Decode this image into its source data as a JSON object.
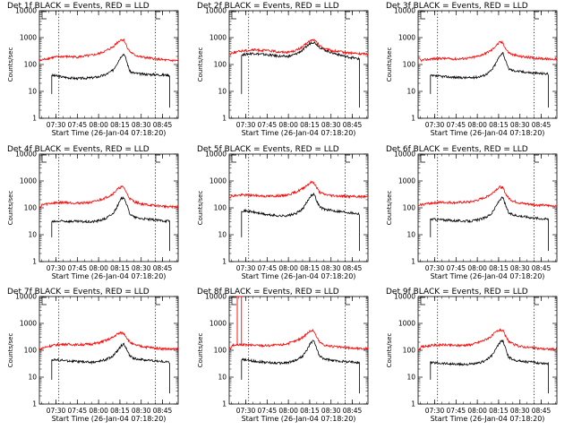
{
  "chart_data": [
    {
      "type": "line",
      "title": "Det 1f BLACK = Events, RED = LLD",
      "xlabel": "Start Time (26-Jan-04 07:18:20)",
      "ylabel": "Counts/sec",
      "ylim": [
        1,
        10000
      ],
      "yscale": "log",
      "xlim": [
        "07:18:20",
        "08:56:00"
      ],
      "xticks": [
        "07:30",
        "07:45",
        "08:00",
        "08:15",
        "08:30",
        "08:45"
      ],
      "yticks": [
        "1",
        "10",
        "100",
        "1000",
        "10000"
      ],
      "vlines": [
        "07:32",
        "08:40"
      ],
      "line_colors": {
        "events": "#000000",
        "lld": "#ff0000"
      },
      "events_range": [
        "07:27",
        "08:50"
      ],
      "x": [
        "07:20",
        "07:27",
        "07:35",
        "07:45",
        "07:55",
        "08:00",
        "08:05",
        "08:10",
        "08:13",
        "08:16",
        "08:18",
        "08:20",
        "08:22",
        "08:25",
        "08:30",
        "08:40",
        "08:50",
        "08:56"
      ],
      "series": [
        {
          "name": "BLACK",
          "values": [
            null,
            40,
            34,
            30,
            32,
            35,
            42,
            60,
            110,
            210,
            250,
            120,
            55,
            48,
            44,
            42,
            40,
            null
          ]
        },
        {
          "name": "RED",
          "values": [
            150,
            180,
            200,
            190,
            220,
            250,
            320,
            450,
            650,
            850,
            800,
            450,
            300,
            230,
            190,
            160,
            140,
            140
          ]
        }
      ]
    },
    {
      "type": "line",
      "title": "Det 2f BLACK = Events, RED = LLD",
      "xlabel": "Start Time (26-Jan-04 07:18:20)",
      "ylabel": "Counts/sec",
      "ylim": [
        1,
        10000
      ],
      "yscale": "log",
      "xlim": [
        "07:18:20",
        "08:56:00"
      ],
      "xticks": [
        "07:30",
        "07:45",
        "08:00",
        "08:15",
        "08:30",
        "08:45"
      ],
      "yticks": [
        "1",
        "10",
        "100",
        "1000",
        "10000"
      ],
      "vlines": [
        "07:32",
        "08:40"
      ],
      "line_colors": {
        "events": "#000000",
        "lld": "#ff0000"
      },
      "events_range": [
        "07:27",
        "08:50"
      ],
      "x": [
        "07:20",
        "07:27",
        "07:35",
        "07:45",
        "07:55",
        "08:00",
        "08:05",
        "08:10",
        "08:13",
        "08:16",
        "08:18",
        "08:20",
        "08:22",
        "08:25",
        "08:30",
        "08:40",
        "08:50",
        "08:56"
      ],
      "series": [
        {
          "name": "BLACK",
          "values": [
            null,
            230,
            260,
            230,
            200,
            200,
            240,
            340,
            480,
            650,
            680,
            560,
            440,
            360,
            280,
            200,
            160,
            null
          ]
        },
        {
          "name": "RED",
          "values": [
            270,
            320,
            350,
            330,
            290,
            290,
            330,
            450,
            620,
            800,
            820,
            650,
            500,
            400,
            330,
            280,
            250,
            250
          ]
        }
      ]
    },
    {
      "type": "line",
      "title": "Det 3f BLACK = Events, RED = LLD",
      "xlabel": "Start Time (26-Jan-04 07:18:20)",
      "ylabel": "Counts/sec",
      "ylim": [
        1,
        10000
      ],
      "yscale": "log",
      "xlim": [
        "07:18:20",
        "08:56:00"
      ],
      "xticks": [
        "07:30",
        "07:45",
        "08:00",
        "08:15",
        "08:30",
        "08:45"
      ],
      "yticks": [
        "1",
        "10",
        "100",
        "1000",
        "10000"
      ],
      "vlines": [
        "07:32",
        "08:40"
      ],
      "line_colors": {
        "events": "#000000",
        "lld": "#ff0000"
      },
      "events_range": [
        "07:27",
        "08:50"
      ],
      "x": [
        "07:20",
        "07:27",
        "07:35",
        "07:45",
        "07:55",
        "08:00",
        "08:05",
        "08:10",
        "08:13",
        "08:16",
        "08:18",
        "08:20",
        "08:22",
        "08:25",
        "08:30",
        "08:40",
        "08:50",
        "08:56"
      ],
      "series": [
        {
          "name": "BLACK",
          "values": [
            null,
            38,
            36,
            33,
            32,
            34,
            40,
            60,
            110,
            220,
            280,
            130,
            70,
            60,
            55,
            48,
            45,
            null
          ]
        },
        {
          "name": "RED",
          "values": [
            140,
            160,
            170,
            160,
            175,
            200,
            250,
            340,
            500,
            680,
            640,
            380,
            280,
            230,
            200,
            175,
            160,
            160
          ]
        }
      ]
    },
    {
      "type": "line",
      "title": "Det 4f BLACK = Events, RED = LLD",
      "xlabel": "Start Time (26-Jan-04 07:18:20)",
      "ylabel": "Counts/sec",
      "ylim": [
        1,
        10000
      ],
      "yscale": "log",
      "xlim": [
        "07:18:20",
        "08:56:00"
      ],
      "xticks": [
        "07:30",
        "07:45",
        "08:00",
        "08:15",
        "08:30",
        "08:45"
      ],
      "yticks": [
        "1",
        "10",
        "100",
        "1000",
        "10000"
      ],
      "vlines": [
        "07:32",
        "08:40"
      ],
      "line_colors": {
        "events": "#000000",
        "lld": "#ff0000"
      },
      "events_range": [
        "07:27",
        "08:50"
      ],
      "x": [
        "07:20",
        "07:27",
        "07:35",
        "07:45",
        "07:55",
        "08:00",
        "08:05",
        "08:10",
        "08:13",
        "08:16",
        "08:18",
        "08:20",
        "08:22",
        "08:25",
        "08:30",
        "08:40",
        "08:50",
        "08:56"
      ],
      "series": [
        {
          "name": "BLACK",
          "values": [
            null,
            30,
            32,
            31,
            30,
            33,
            40,
            60,
            110,
            220,
            250,
            120,
            60,
            45,
            40,
            35,
            32,
            null
          ]
        },
        {
          "name": "RED",
          "values": [
            130,
            150,
            160,
            150,
            160,
            190,
            240,
            330,
            480,
            600,
            560,
            330,
            220,
            170,
            140,
            120,
            110,
            110
          ]
        }
      ]
    },
    {
      "type": "line",
      "title": "Det 5f BLACK = Events, RED = LLD",
      "xlabel": "Start Time (26-Jan-04 07:18:20)",
      "ylabel": "Counts/sec",
      "ylim": [
        1,
        10000
      ],
      "yscale": "log",
      "xlim": [
        "07:18:20",
        "08:56:00"
      ],
      "xticks": [
        "07:30",
        "07:45",
        "08:00",
        "08:15",
        "08:30",
        "08:45"
      ],
      "yticks": [
        "1",
        "10",
        "100",
        "1000",
        "10000"
      ],
      "vlines": [
        "07:32",
        "08:40"
      ],
      "line_colors": {
        "events": "#000000",
        "lld": "#ff0000"
      },
      "events_range": [
        "07:27",
        "08:50"
      ],
      "x": [
        "07:20",
        "07:27",
        "07:35",
        "07:45",
        "07:55",
        "08:00",
        "08:05",
        "08:10",
        "08:13",
        "08:16",
        "08:18",
        "08:20",
        "08:22",
        "08:25",
        "08:30",
        "08:40",
        "08:50",
        "08:56"
      ],
      "series": [
        {
          "name": "BLACK",
          "values": [
            null,
            80,
            70,
            55,
            50,
            52,
            60,
            90,
            160,
            300,
            330,
            180,
            110,
            90,
            80,
            70,
            60,
            null
          ]
        },
        {
          "name": "RED",
          "values": [
            280,
            300,
            290,
            270,
            280,
            310,
            380,
            520,
            700,
            900,
            850,
            550,
            380,
            320,
            290,
            270,
            260,
            260
          ]
        }
      ]
    },
    {
      "type": "line",
      "title": "Det 6f BLACK = Events, RED = LLD",
      "xlabel": "Start Time (26-Jan-04 07:18:20)",
      "ylabel": "Counts/sec",
      "ylim": [
        1,
        10000
      ],
      "yscale": "log",
      "xlim": [
        "07:18:20",
        "08:56:00"
      ],
      "xticks": [
        "07:30",
        "07:45",
        "08:00",
        "08:15",
        "08:30",
        "08:45"
      ],
      "yticks": [
        "1",
        "10",
        "100",
        "1000",
        "10000"
      ],
      "vlines": [
        "07:32",
        "08:40"
      ],
      "line_colors": {
        "events": "#000000",
        "lld": "#ff0000"
      },
      "events_range": [
        "07:27",
        "08:50"
      ],
      "x": [
        "07:20",
        "07:27",
        "07:35",
        "07:45",
        "07:55",
        "08:00",
        "08:05",
        "08:10",
        "08:13",
        "08:16",
        "08:18",
        "08:20",
        "08:22",
        "08:25",
        "08:30",
        "08:40",
        "08:50",
        "08:56"
      ],
      "series": [
        {
          "name": "BLACK",
          "values": [
            null,
            38,
            36,
            33,
            32,
            35,
            42,
            60,
            110,
            210,
            240,
            120,
            65,
            55,
            50,
            42,
            38,
            null
          ]
        },
        {
          "name": "RED",
          "values": [
            130,
            150,
            160,
            155,
            165,
            190,
            240,
            330,
            470,
            600,
            560,
            330,
            230,
            180,
            150,
            130,
            120,
            120
          ]
        }
      ]
    },
    {
      "type": "line",
      "title": "Det 7f BLACK = Events, RED = LLD",
      "xlabel": "Start Time (26-Jan-04 07:18:20)",
      "ylabel": "Counts/sec",
      "ylim": [
        1,
        10000
      ],
      "yscale": "log",
      "xlim": [
        "07:18:20",
        "08:56:00"
      ],
      "xticks": [
        "07:30",
        "07:45",
        "08:00",
        "08:15",
        "08:30",
        "08:45"
      ],
      "yticks": [
        "1",
        "10",
        "100",
        "1000",
        "10000"
      ],
      "vlines": [
        "07:32",
        "08:40"
      ],
      "line_colors": {
        "events": "#000000",
        "lld": "#ff0000"
      },
      "events_range": [
        "07:27",
        "08:50"
      ],
      "x": [
        "07:20",
        "07:27",
        "07:35",
        "07:45",
        "07:55",
        "08:00",
        "08:05",
        "08:10",
        "08:13",
        "08:16",
        "08:18",
        "08:20",
        "08:22",
        "08:25",
        "08:30",
        "08:40",
        "08:50",
        "08:56"
      ],
      "series": [
        {
          "name": "BLACK",
          "values": [
            null,
            45,
            42,
            38,
            36,
            38,
            45,
            60,
            90,
            150,
            170,
            100,
            60,
            50,
            45,
            40,
            36,
            null
          ]
        },
        {
          "name": "RED",
          "values": [
            120,
            150,
            170,
            160,
            170,
            190,
            230,
            300,
            400,
            450,
            420,
            280,
            200,
            160,
            140,
            120,
            110,
            110
          ]
        }
      ]
    },
    {
      "type": "line",
      "title": "Det 8f BLACK = Events, RED = LLD",
      "xlabel": "Start Time (26-Jan-04 07:18:20)",
      "ylabel": "Counts/sec",
      "ylim": [
        1,
        10000
      ],
      "yscale": "log",
      "xlim": [
        "07:18:20",
        "08:56:00"
      ],
      "xticks": [
        "07:30",
        "07:45",
        "08:00",
        "08:15",
        "08:30",
        "08:45"
      ],
      "yticks": [
        "1",
        "10",
        "100",
        "1000",
        "10000"
      ],
      "vlines": [
        "07:32",
        "08:40"
      ],
      "line_colors": {
        "events": "#000000",
        "lld": "#ff0000"
      },
      "events_range": [
        "07:27",
        "08:50"
      ],
      "spike": {
        "from": "07:24",
        "to": "07:27",
        "value": 10000
      },
      "x": [
        "07:20",
        "07:27",
        "07:35",
        "07:45",
        "07:55",
        "08:00",
        "08:05",
        "08:10",
        "08:13",
        "08:16",
        "08:18",
        "08:20",
        "08:22",
        "08:25",
        "08:30",
        "08:40",
        "08:50",
        "08:56"
      ],
      "series": [
        {
          "name": "BLACK",
          "values": [
            null,
            45,
            40,
            35,
            33,
            35,
            42,
            60,
            100,
            200,
            230,
            110,
            60,
            48,
            42,
            38,
            35,
            null
          ]
        },
        {
          "name": "RED",
          "values": [
            150,
            160,
            155,
            150,
            160,
            180,
            220,
            300,
            420,
            550,
            520,
            300,
            200,
            160,
            140,
            125,
            115,
            115
          ]
        }
      ]
    },
    {
      "type": "line",
      "title": "Det 9f BLACK = Events, RED = LLD",
      "xlabel": "Start Time (26-Jan-04 07:18:20)",
      "ylabel": "Counts/sec",
      "ylim": [
        1,
        10000
      ],
      "yscale": "log",
      "xlim": [
        "07:18:20",
        "08:56:00"
      ],
      "xticks": [
        "07:30",
        "07:45",
        "08:00",
        "08:15",
        "08:30",
        "08:45"
      ],
      "yticks": [
        "1",
        "10",
        "100",
        "1000",
        "10000"
      ],
      "vlines": [
        "07:32",
        "08:40"
      ],
      "line_colors": {
        "events": "#000000",
        "lld": "#ff0000"
      },
      "events_range": [
        "07:27",
        "08:50"
      ],
      "x": [
        "07:20",
        "07:27",
        "07:35",
        "07:45",
        "07:55",
        "08:00",
        "08:05",
        "08:10",
        "08:13",
        "08:16",
        "08:18",
        "08:20",
        "08:22",
        "08:25",
        "08:30",
        "08:40",
        "08:50",
        "08:56"
      ],
      "series": [
        {
          "name": "BLACK",
          "values": [
            null,
            35,
            33,
            30,
            30,
            32,
            40,
            60,
            110,
            200,
            230,
            110,
            55,
            45,
            40,
            35,
            32,
            null
          ]
        },
        {
          "name": "RED",
          "values": [
            130,
            150,
            160,
            150,
            160,
            190,
            240,
            330,
            470,
            580,
            540,
            320,
            220,
            170,
            140,
            120,
            110,
            110
          ]
        }
      ]
    }
  ]
}
